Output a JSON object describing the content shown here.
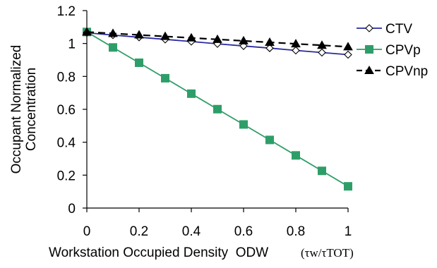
{
  "chart_data": {
    "type": "line",
    "xlabel": "Workstation Occupied Density  ODW",
    "xlabel_unit": "(τw/τTOT)",
    "ylabel_lines": [
      "Occupant Normalized",
      "Concentration"
    ],
    "x": [
      0,
      0.1,
      0.2,
      0.3,
      0.4,
      0.5,
      0.6,
      0.7,
      0.8,
      0.9,
      1.0
    ],
    "xlim": [
      0,
      1
    ],
    "ylim": [
      0,
      1.2
    ],
    "xticks": [
      "0",
      "0.2",
      "0.4",
      "0.6",
      "0.8",
      "1"
    ],
    "xtick_values": [
      0,
      0.2,
      0.4,
      0.6,
      0.8,
      1
    ],
    "yticks": [
      "0",
      "0.2",
      "0.4",
      "0.6",
      "0.8",
      "1",
      "1.2"
    ],
    "ytick_values": [
      0,
      0.2,
      0.4,
      0.6,
      0.8,
      1,
      1.2
    ],
    "grid": false,
    "legend_position": "right",
    "series": [
      {
        "name": "CTV",
        "color": "#2a2aa0",
        "marker": "open-diamond",
        "dash": "solid",
        "values": [
          1.065,
          1.051,
          1.038,
          1.025,
          1.012,
          0.998,
          0.985,
          0.972,
          0.958,
          0.945,
          0.932
        ]
      },
      {
        "name": "CPVp",
        "color": "#2e9e68",
        "marker": "filled-square",
        "dash": "solid",
        "values": [
          1.07,
          0.976,
          0.883,
          0.789,
          0.695,
          0.601,
          0.508,
          0.414,
          0.32,
          0.226,
          0.132
        ]
      },
      {
        "name": "CPVnp",
        "color": "#000000",
        "marker": "filled-triangle",
        "dash": "dashed",
        "values": [
          1.07,
          1.061,
          1.052,
          1.043,
          1.034,
          1.025,
          1.016,
          1.007,
          0.998,
          0.989,
          0.98
        ]
      }
    ]
  }
}
